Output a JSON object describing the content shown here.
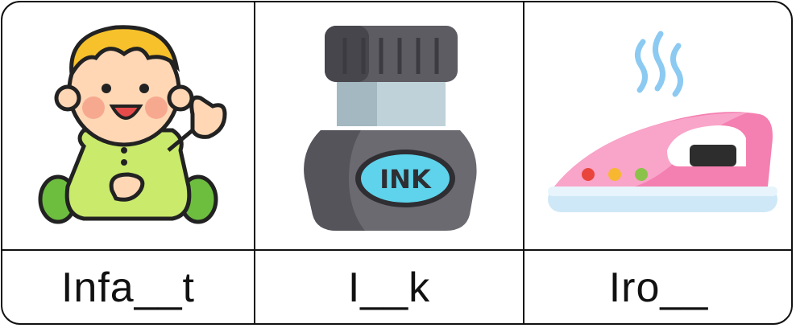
{
  "cards": [
    {
      "icon": "baby-icon",
      "word": "Infa__t"
    },
    {
      "icon": "ink-bottle-icon",
      "word": "I__k",
      "icon_text": "INK"
    },
    {
      "icon": "clothes-iron-icon",
      "word": "Iro__"
    }
  ],
  "colors": {
    "border": "#111111",
    "baby_hair": "#F7C12B",
    "baby_suit": "#C9EA6B",
    "baby_skin": "#FFD7B5",
    "ink_bottle": "#6B6A70",
    "ink_label": "#5ED3EB",
    "iron_body": "#F47FB1",
    "iron_base": "#CFE8F7"
  }
}
